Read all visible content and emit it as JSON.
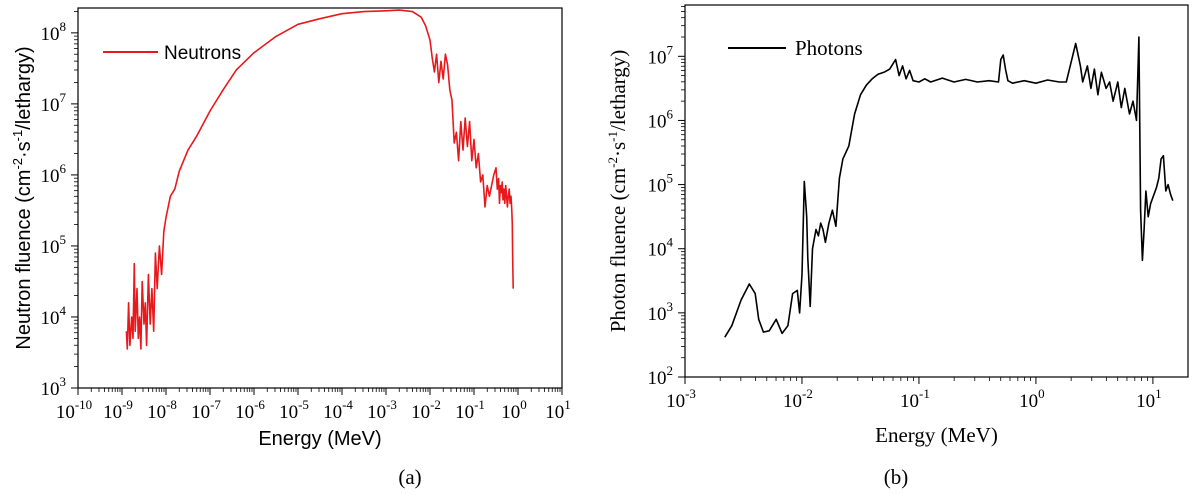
{
  "chart_data": [
    {
      "type": "line",
      "panel_label": "(a)",
      "xlabel": "Energy (MeV)",
      "ylabel_parts": [
        "Neutron fluence (cm",
        "-2",
        "·s",
        "-1",
        "/lethargy)"
      ],
      "xscale": "log",
      "yscale": "log",
      "xlim_exp": [
        -10,
        1
      ],
      "ylim_exp": [
        3,
        8.35
      ],
      "x_tick_exponents": [
        -10,
        -9,
        -8,
        -7,
        -6,
        -5,
        -4,
        -3,
        -2,
        -1,
        0,
        1
      ],
      "y_tick_exponents": [
        3,
        4,
        5,
        6,
        7,
        8
      ],
      "tick_base": "10",
      "legend_position": "top-left",
      "series": [
        {
          "name": "Neutrons",
          "color": "#e8191c",
          "log10_x": [
            -8.9,
            -8.88,
            -8.85,
            -8.82,
            -8.78,
            -8.75,
            -8.72,
            -8.7,
            -8.66,
            -8.63,
            -8.6,
            -8.57,
            -8.54,
            -8.5,
            -8.47,
            -8.44,
            -8.4,
            -8.36,
            -8.32,
            -8.28,
            -8.24,
            -8.2,
            -8.15,
            -8.1,
            -8.05,
            -8.0,
            -7.9,
            -7.8,
            -7.7,
            -7.6,
            -7.5,
            -7.3,
            -7.0,
            -6.7,
            -6.4,
            -6.0,
            -5.5,
            -5.0,
            -4.5,
            -4.0,
            -3.5,
            -3.0,
            -2.7,
            -2.4,
            -2.2,
            -2.1,
            -2.0,
            -1.95,
            -1.9,
            -1.85,
            -1.8,
            -1.75,
            -1.7,
            -1.65,
            -1.6,
            -1.55,
            -1.5,
            -1.45,
            -1.4,
            -1.35,
            -1.3,
            -1.25,
            -1.2,
            -1.15,
            -1.1,
            -1.05,
            -1.0,
            -0.95,
            -0.9,
            -0.85,
            -0.8,
            -0.75,
            -0.7,
            -0.65,
            -0.6,
            -0.55,
            -0.5,
            -0.47,
            -0.44,
            -0.42,
            -0.4,
            -0.38,
            -0.36,
            -0.34,
            -0.32,
            -0.3,
            -0.28,
            -0.26,
            -0.24,
            -0.22,
            -0.2,
            -0.18,
            -0.16,
            -0.14,
            -0.13,
            -0.12,
            -0.11
          ],
          "log10_y": [
            3.8,
            3.55,
            4.2,
            3.6,
            4.0,
            3.7,
            4.75,
            3.8,
            4.4,
            3.7,
            4.0,
            3.55,
            4.5,
            3.9,
            4.2,
            3.6,
            4.6,
            3.9,
            4.4,
            3.8,
            4.9,
            4.4,
            5.0,
            4.6,
            5.2,
            5.4,
            5.7,
            5.8,
            6.05,
            6.2,
            6.35,
            6.55,
            6.9,
            7.2,
            7.48,
            7.72,
            7.95,
            8.12,
            8.2,
            8.27,
            8.3,
            8.31,
            8.32,
            8.3,
            8.22,
            8.1,
            7.9,
            7.65,
            7.45,
            7.7,
            7.3,
            7.6,
            7.35,
            7.7,
            7.55,
            7.2,
            7.05,
            6.45,
            6.6,
            6.2,
            6.75,
            6.35,
            6.8,
            6.4,
            6.75,
            6.2,
            6.5,
            6.1,
            6.3,
            5.9,
            6.0,
            5.55,
            5.85,
            5.7,
            5.85,
            6.0,
            6.1,
            5.8,
            5.95,
            5.6,
            5.85,
            5.75,
            5.9,
            5.65,
            5.8,
            5.6,
            5.85,
            5.7,
            5.55,
            5.7,
            5.8,
            5.6,
            5.7,
            5.5,
            5.3,
            4.8,
            4.4
          ]
        }
      ]
    },
    {
      "type": "line",
      "panel_label": "(b)",
      "xlabel": "Energy (MeV)",
      "ylabel_parts": [
        "Photon fluence (cm",
        "-2",
        "·s",
        "-1",
        "/lethargy)"
      ],
      "xscale": "log",
      "yscale": "log",
      "xlim_exp": [
        -3,
        1.3
      ],
      "ylim_exp": [
        2,
        7.8
      ],
      "x_tick_exponents": [
        -3,
        -2,
        -1,
        0,
        1
      ],
      "y_tick_exponents": [
        2,
        3,
        4,
        5,
        6,
        7
      ],
      "tick_base": "10",
      "legend_position": "top-left",
      "series": [
        {
          "name": "Photons",
          "color": "#000000",
          "log10_x": [
            -2.66,
            -2.6,
            -2.52,
            -2.45,
            -2.4,
            -2.37,
            -2.33,
            -2.28,
            -2.22,
            -2.17,
            -2.12,
            -2.08,
            -2.04,
            -2.02,
            -2.0,
            -1.98,
            -1.96,
            -1.95,
            -1.93,
            -1.91,
            -1.88,
            -1.86,
            -1.84,
            -1.82,
            -1.8,
            -1.77,
            -1.74,
            -1.71,
            -1.68,
            -1.65,
            -1.6,
            -1.55,
            -1.5,
            -1.45,
            -1.4,
            -1.35,
            -1.3,
            -1.25,
            -1.2,
            -1.17,
            -1.14,
            -1.11,
            -1.08,
            -1.05,
            -1.0,
            -0.95,
            -0.9,
            -0.8,
            -0.7,
            -0.6,
            -0.5,
            -0.4,
            -0.32,
            -0.3,
            -0.28,
            -0.26,
            -0.24,
            -0.2,
            -0.1,
            0.0,
            0.1,
            0.2,
            0.26,
            0.3,
            0.34,
            0.38,
            0.4,
            0.44,
            0.47,
            0.5,
            0.53,
            0.56,
            0.6,
            0.63,
            0.66,
            0.7,
            0.73,
            0.76,
            0.8,
            0.83,
            0.86,
            0.88,
            0.895,
            0.91,
            0.925,
            0.94,
            0.96,
            0.98,
            1.0,
            1.03,
            1.05,
            1.07,
            1.09,
            1.11,
            1.13,
            1.15,
            1.17
          ],
          "log10_y": [
            2.62,
            2.8,
            3.2,
            3.45,
            3.3,
            2.9,
            2.7,
            2.72,
            2.9,
            2.68,
            2.8,
            3.3,
            3.35,
            3.0,
            3.6,
            5.05,
            4.5,
            3.85,
            3.1,
            4.0,
            4.3,
            4.2,
            4.4,
            4.3,
            4.1,
            4.4,
            4.6,
            4.35,
            5.1,
            5.4,
            5.6,
            6.1,
            6.4,
            6.55,
            6.65,
            6.72,
            6.75,
            6.8,
            6.95,
            6.7,
            6.85,
            6.65,
            6.78,
            6.62,
            6.6,
            6.65,
            6.6,
            6.66,
            6.6,
            6.64,
            6.6,
            6.62,
            6.6,
            6.95,
            7.02,
            6.8,
            6.62,
            6.58,
            6.62,
            6.58,
            6.63,
            6.6,
            6.6,
            6.9,
            7.2,
            6.85,
            6.6,
            6.85,
            6.5,
            6.8,
            6.4,
            6.75,
            6.5,
            6.6,
            6.3,
            6.6,
            6.2,
            6.5,
            6.1,
            6.3,
            6.0,
            7.3,
            4.6,
            3.82,
            4.3,
            4.9,
            4.5,
            4.7,
            4.8,
            4.95,
            5.1,
            5.4,
            5.45,
            4.9,
            5.0,
            4.85,
            4.75
          ]
        }
      ]
    }
  ]
}
